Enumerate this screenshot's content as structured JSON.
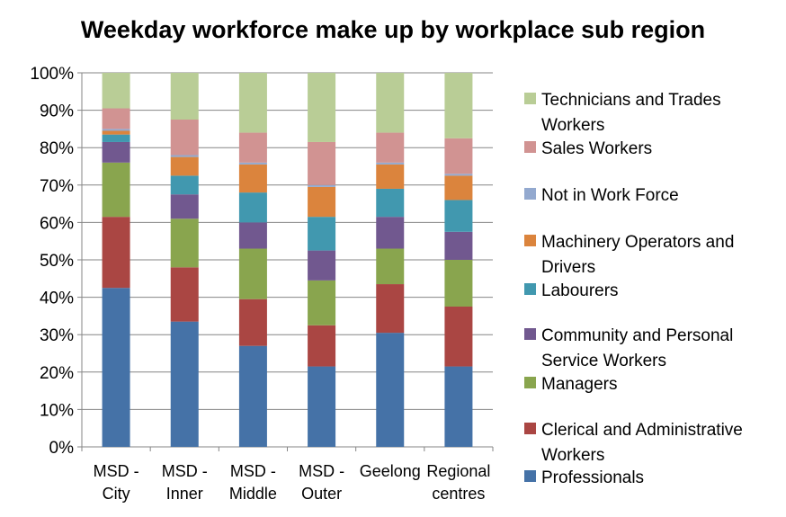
{
  "chart_data": {
    "type": "bar",
    "stacked": true,
    "percent": true,
    "title": "Weekday workforce make up by workplace sub region",
    "xlabel": "",
    "ylabel": "",
    "ylim": [
      0,
      100
    ],
    "y_ticks": [
      "0%",
      "10%",
      "20%",
      "30%",
      "40%",
      "50%",
      "60%",
      "70%",
      "80%",
      "90%",
      "100%"
    ],
    "grid": true,
    "legend_position": "right",
    "categories": [
      [
        "MSD -",
        "City"
      ],
      [
        "MSD -",
        "Inner"
      ],
      [
        "MSD -",
        "Middle"
      ],
      [
        "MSD -",
        "Outer"
      ],
      [
        "Geelong"
      ],
      [
        "Regional",
        "centres"
      ]
    ],
    "series": [
      {
        "name": "Professionals",
        "color": "#4572A7",
        "values": [
          42.5,
          33.5,
          27.0,
          21.5,
          30.5,
          21.5
        ]
      },
      {
        "name": "Clerical and Administrative Workers",
        "color": "#AA4643",
        "values": [
          19.0,
          14.5,
          12.5,
          11.0,
          13.0,
          16.0
        ]
      },
      {
        "name": "Managers",
        "color": "#89A54E",
        "values": [
          14.5,
          13.0,
          13.5,
          12.0,
          9.5,
          12.5
        ]
      },
      {
        "name": "Community and Personal Service Workers",
        "color": "#71588F",
        "values": [
          5.5,
          6.5,
          7.0,
          8.0,
          8.5,
          7.5
        ]
      },
      {
        "name": "Labourers",
        "color": "#4198AF",
        "values": [
          2.0,
          5.0,
          8.0,
          9.0,
          7.5,
          8.5
        ]
      },
      {
        "name": "Machinery Operators and Drivers",
        "color": "#DB843D",
        "values": [
          1.0,
          5.0,
          7.5,
          8.0,
          6.5,
          6.5
        ]
      },
      {
        "name": "Not in Work Force",
        "color": "#93A9CF",
        "values": [
          0.5,
          0.5,
          0.5,
          0.5,
          0.5,
          0.5
        ]
      },
      {
        "name": "Sales Workers",
        "color": "#D19392",
        "values": [
          5.5,
          9.5,
          8.0,
          11.5,
          8.0,
          9.5
        ]
      },
      {
        "name": "Technicians and Trades Workers",
        "color": "#B9CD96",
        "values": [
          9.5,
          12.5,
          16.0,
          18.5,
          16.0,
          17.5
        ]
      }
    ],
    "legend_order": [
      [
        "Technicians and Trades",
        "Workers"
      ],
      [
        "Sales Workers"
      ],
      [
        "Not in Work Force"
      ],
      [
        "Machinery Operators and",
        "Drivers"
      ],
      [
        "Labourers"
      ],
      [
        "Community and Personal",
        "Service Workers"
      ],
      [
        "Managers"
      ],
      [
        "Clerical and Administrative",
        "Workers"
      ],
      [
        "Professionals"
      ]
    ]
  }
}
